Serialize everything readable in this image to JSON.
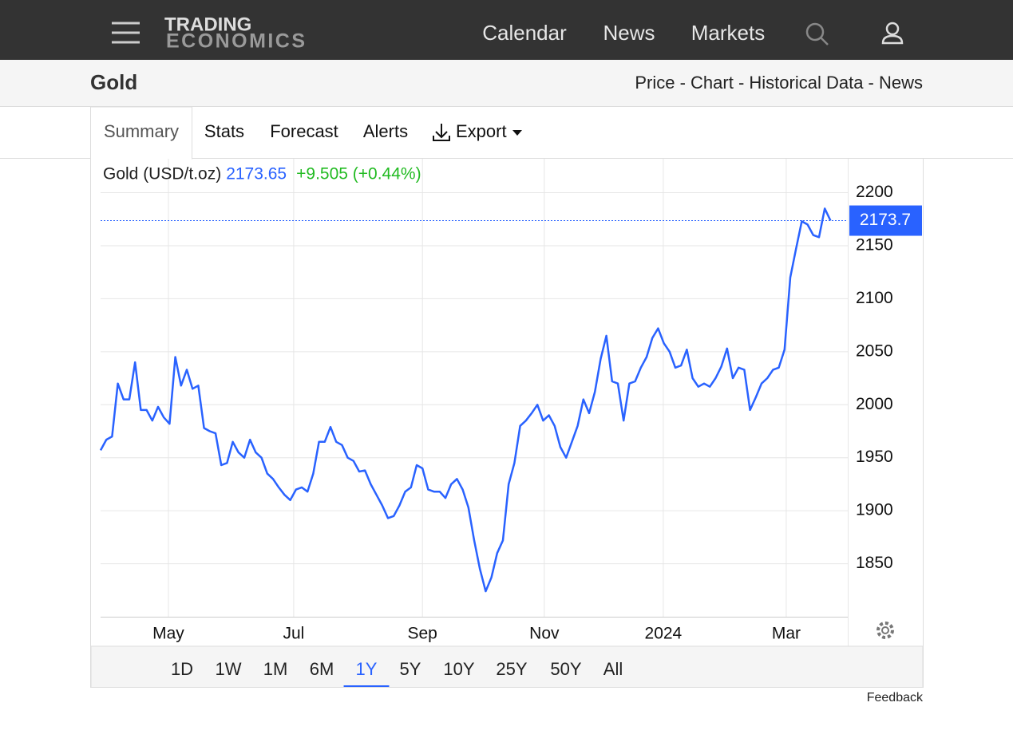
{
  "header": {
    "logo": [
      "TRADING",
      "ECONOMICS"
    ],
    "nav": [
      "Calendar",
      "News",
      "Markets"
    ]
  },
  "subheader": {
    "title": "Gold",
    "links": "Price - Chart - Historical Data - News"
  },
  "tabs": [
    "Summary",
    "Stats",
    "Forecast",
    "Alerts",
    "Export"
  ],
  "chart_data": {
    "type": "line",
    "title": "Gold (USD/t.oz)",
    "change": "+9.505 (+0.44%)",
    "color": "#2962ff",
    "change_color": "#22bb22",
    "values": [
      1957,
      1967,
      1970,
      2020,
      2005,
      2005,
      2040,
      1995,
      1995,
      1985,
      1998,
      1988,
      1982,
      2045,
      2018,
      2033,
      2015,
      2018,
      1978,
      1975,
      1973,
      1943,
      1945,
      1965,
      1955,
      1950,
      1967,
      1955,
      1950,
      1935,
      1930,
      1922,
      1915,
      1910,
      1920,
      1922,
      1918,
      1935,
      1965,
      1965,
      1979,
      1965,
      1962,
      1950,
      1947,
      1937,
      1938,
      1925,
      1915,
      1905,
      1893,
      1895,
      1905,
      1918,
      1922,
      1943,
      1940,
      1920,
      1918,
      1918,
      1912,
      1925,
      1930,
      1920,
      1903,
      1872,
      1845,
      1824,
      1837,
      1860,
      1872,
      1925,
      1945,
      1980,
      1985,
      1992,
      2000,
      1985,
      1990,
      1980,
      1960,
      1950,
      1965,
      1980,
      2005,
      1992,
      2012,
      2043,
      2065,
      2022,
      2020,
      1985,
      2020,
      2022,
      2035,
      2045,
      2063,
      2072,
      2058,
      2050,
      2035,
      2037,
      2052,
      2025,
      2017,
      2020,
      2017,
      2025,
      2036,
      2053,
      2025,
      2035,
      2033,
      1995,
      2007,
      2020,
      2025,
      2033,
      2035,
      2052,
      2120,
      2147,
      2173,
      2170,
      2160,
      2158,
      2185,
      2173.65
    ],
    "last_label": {
      "value": 2173.65,
      "label": "2173.7"
    },
    "xlim": [
      0,
      130
    ],
    "xticks": [
      {
        "value": 11.8,
        "label": "May"
      },
      {
        "value": 33.6,
        "label": "Jul"
      },
      {
        "value": 56,
        "label": "Sep"
      },
      {
        "value": 77.2,
        "label": "Nov"
      },
      {
        "value": 97.9,
        "label": "2024"
      },
      {
        "value": 119.3,
        "label": "Mar"
      }
    ],
    "ylim": [
      1800,
      2232
    ],
    "yticks": [
      1850,
      1900,
      1950,
      2000,
      2050,
      2100,
      2150,
      2200
    ],
    "grid": true
  },
  "ranges": [
    {
      "label": "1D",
      "active": false
    },
    {
      "label": "1W",
      "active": false
    },
    {
      "label": "1M",
      "active": false
    },
    {
      "label": "6M",
      "active": false
    },
    {
      "label": "1Y",
      "active": true
    },
    {
      "label": "5Y",
      "active": false
    },
    {
      "label": "10Y",
      "active": false
    },
    {
      "label": "25Y",
      "active": false
    },
    {
      "label": "50Y",
      "active": false
    },
    {
      "label": "All",
      "active": false
    }
  ],
  "footer": {
    "feedback": "Feedback"
  }
}
